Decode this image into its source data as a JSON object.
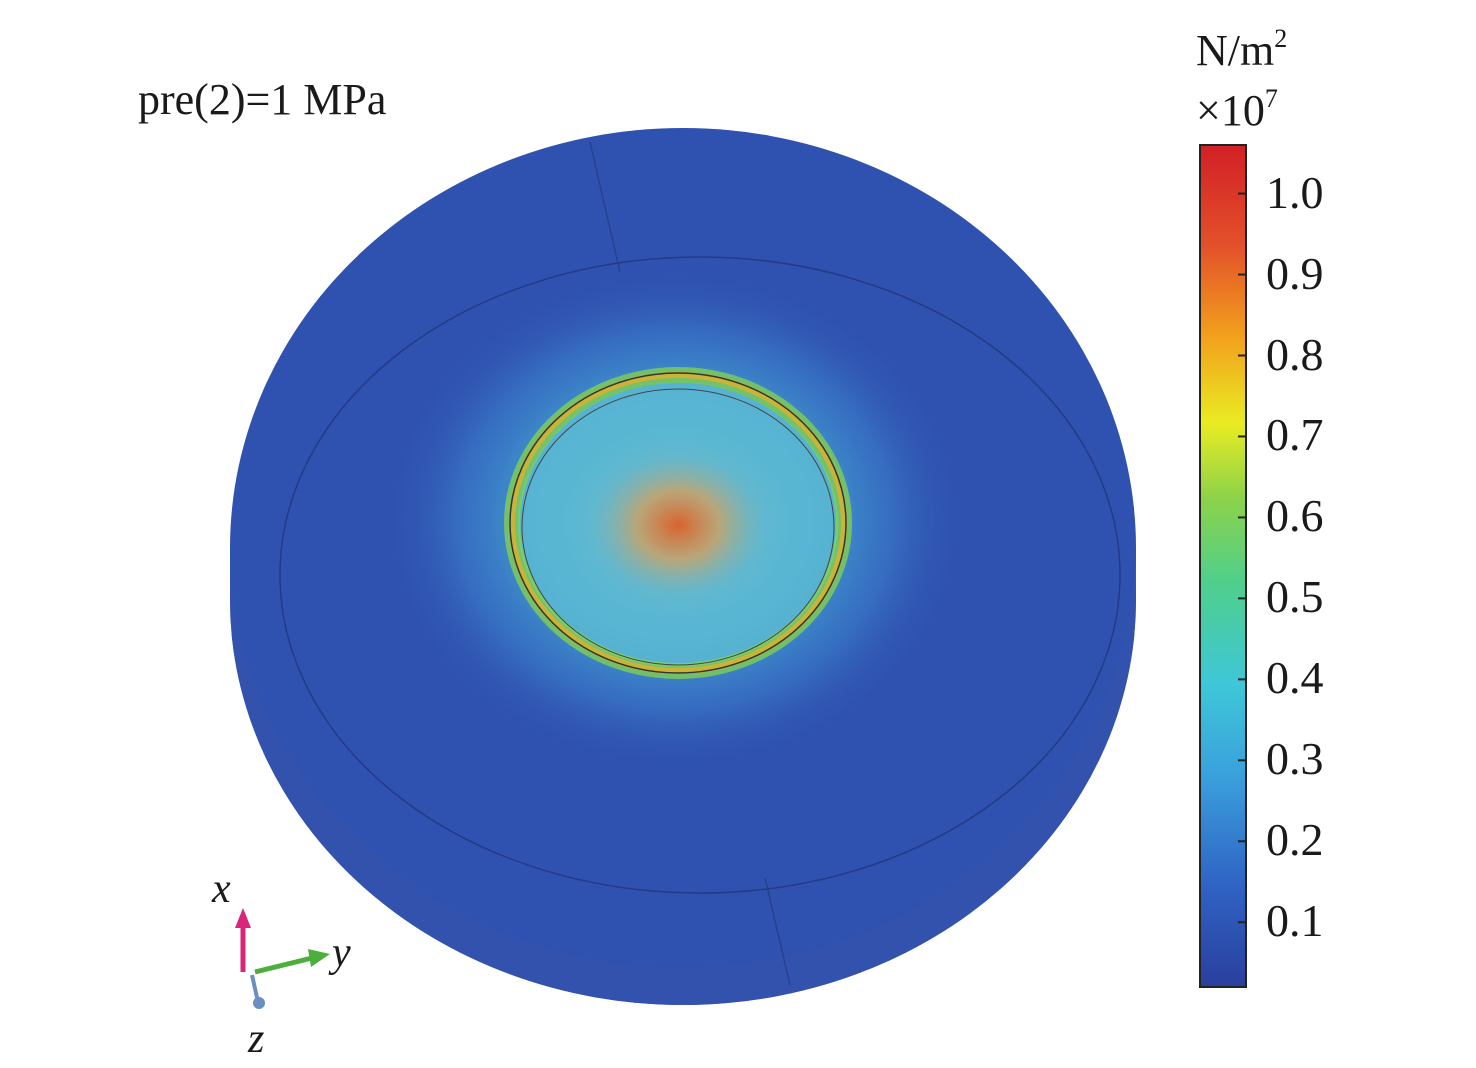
{
  "figure": {
    "annotation": "pre(2)=1 MPa"
  },
  "colorbar": {
    "unit_base": "N/m",
    "unit_exp": "2",
    "multiplier_base": "×10",
    "multiplier_exp": "7",
    "ticks": [
      "1.0",
      "0.9",
      "0.8",
      "0.7",
      "0.6",
      "0.5",
      "0.4",
      "0.3",
      "0.2",
      "0.1"
    ],
    "tick_values": [
      1.0,
      0.9,
      0.8,
      0.7,
      0.6,
      0.5,
      0.4,
      0.3,
      0.2,
      0.1
    ],
    "range": [
      0.02,
      1.06
    ],
    "colormap": [
      "#2a3f9e",
      "#2f7fd0",
      "#3cc4e6",
      "#4fcf9a",
      "#8cd24a",
      "#f2ec1e",
      "#f2a21c",
      "#e3512a",
      "#d21f26"
    ]
  },
  "axes_triad": {
    "x_label": "x",
    "y_label": "y",
    "z_label": "z",
    "x_color": "#d9267a",
    "y_color": "#4caf3c",
    "z_color": "#6b8fc0"
  },
  "field": {
    "background_color": "#2f52b0",
    "peak_color": "#d9632e"
  }
}
